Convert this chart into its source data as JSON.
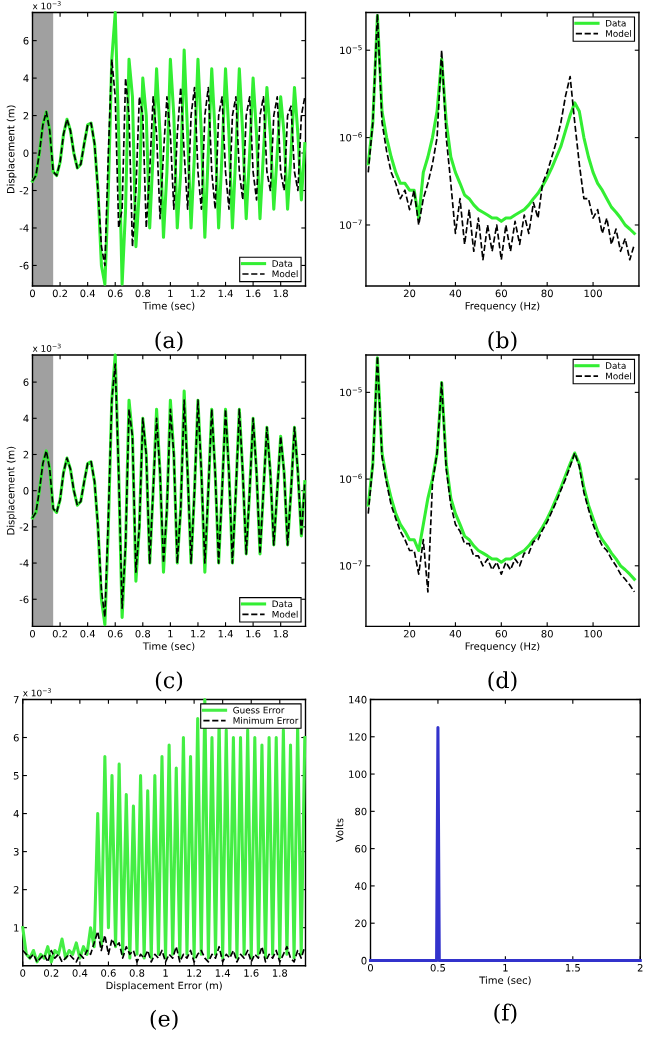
{
  "chart_data": [
    {
      "type": "line",
      "xlabel": "Time (sec)",
      "ylabel": "Displacement (m)",
      "annotations": [
        "(a)",
        "x 10$^{−3}$"
      ],
      "legend": "bottom right",
      "grid": false,
      "x": [
        0,
        0.025,
        0.05,
        0.075,
        0.1,
        0.125,
        0.15,
        0.175,
        0.2,
        0.225,
        0.25,
        0.275,
        0.3,
        0.325,
        0.35,
        0.375,
        0.4,
        0.425,
        0.45,
        0.475,
        0.5,
        0.525,
        0.55,
        0.575,
        0.6,
        0.625,
        0.65,
        0.675,
        0.7,
        0.725,
        0.75,
        0.775,
        0.8,
        0.825,
        0.85,
        0.875,
        0.9,
        0.925,
        0.95,
        0.975,
        1,
        1.025,
        1.05,
        1.075,
        1.1,
        1.125,
        1.15,
        1.175,
        1.2,
        1.225,
        1.25,
        1.275,
        1.3,
        1.325,
        1.35,
        1.375,
        1.4,
        1.425,
        1.45,
        1.475,
        1.5,
        1.525,
        1.55,
        1.575,
        1.6,
        1.625,
        1.65,
        1.675,
        1.7,
        1.725,
        1.75,
        1.775,
        1.8,
        1.825,
        1.85,
        1.875,
        1.9,
        1.925,
        1.95,
        1.975
      ],
      "series": [
        {
          "name": "Data",
          "color": "#33ee33",
          "line_style": "solid",
          "values": [
            -1.5,
            -1.2,
            0,
            1.5,
            2.2,
            1.2,
            -1,
            -1.2,
            -0.5,
            1,
            1.8,
            1.2,
            0,
            -0.8,
            -0.6,
            0.5,
            1.5,
            1.6,
            0.5,
            -2,
            -6,
            -7,
            -2,
            5,
            7.5,
            1,
            -7,
            -3,
            5,
            3,
            -5,
            -2,
            4,
            2,
            -4,
            0,
            4.5,
            1,
            -4.5,
            -1,
            5,
            2,
            -4,
            -1,
            5.5,
            1,
            -4,
            0,
            5,
            1,
            -4.5,
            0,
            4.5,
            1,
            -4,
            0,
            4.5,
            1,
            -4,
            0,
            4.5,
            1,
            -3.5,
            0,
            4,
            1,
            -3.5,
            0,
            3.5,
            1,
            -3,
            0,
            3,
            1,
            -3,
            0,
            3.5,
            1,
            -2.5,
            0.5
          ]
        },
        {
          "name": "Model",
          "color": "#000000",
          "line_style": "dashed",
          "values": [
            -1.5,
            -1.2,
            0,
            1.5,
            2.2,
            1.2,
            -1,
            -1.2,
            -0.5,
            1,
            1.8,
            1.2,
            0,
            -0.8,
            -0.6,
            0.5,
            1.5,
            1.6,
            0.5,
            -2,
            -5,
            -6,
            0,
            5,
            3,
            -4,
            -3,
            4,
            2,
            -5,
            -2,
            3,
            2,
            -4,
            -1,
            3,
            1,
            -3.5,
            0,
            3,
            1,
            -3,
            1,
            3.5,
            0,
            -3,
            2,
            3.5,
            -1,
            -3,
            2,
            3.5,
            -1,
            -3,
            2,
            3,
            -1,
            -3,
            2,
            3,
            -1,
            -2.5,
            2,
            3,
            -1,
            -2.5,
            2,
            3,
            -1,
            -2,
            2,
            3,
            -1,
            -2,
            2,
            2.5,
            -1,
            -2,
            2,
            3
          ]
        }
      ],
      "bands": [
        {
          "axis": "x",
          "from": 0,
          "to": 0.15,
          "color": "#a0a0a0"
        }
      ],
      "xlim": [
        0,
        1.98
      ],
      "ylim": [
        -7.1,
        7.5
      ],
      "xticks": [
        0,
        0.2,
        0.4,
        0.6,
        0.8,
        1,
        1.2,
        1.4,
        1.6,
        1.8
      ],
      "yticks": [
        -6,
        -4,
        -2,
        0,
        2,
        4,
        6
      ]
    },
    {
      "type": "line",
      "xlabel": "Frequency (Hz)",
      "annotations": [
        "(b)"
      ],
      "legend": "top right",
      "grid": false,
      "log": "y",
      "x": [
        2,
        4,
        6,
        8,
        10,
        12,
        14,
        16,
        18,
        20,
        22,
        24,
        26,
        28,
        30,
        32,
        34,
        36,
        38,
        40,
        42,
        44,
        46,
        48,
        50,
        52,
        54,
        56,
        58,
        60,
        62,
        64,
        66,
        68,
        70,
        72,
        74,
        76,
        78,
        80,
        82,
        84,
        86,
        88,
        90,
        92,
        94,
        96,
        98,
        100,
        102,
        104,
        106,
        108,
        110,
        112,
        114,
        116,
        118
      ],
      "series": [
        {
          "name": "Data",
          "color": "#33ee33",
          "line_style": "solid",
          "values": [
            5e-07,
            1.5e-06,
            2.5e-05,
            2e-06,
            1e-06,
            6e-07,
            4e-07,
            3e-07,
            3e-07,
            2.5e-07,
            2.5e-07,
            1.2e-07,
            4e-07,
            6e-07,
            1e-06,
            2e-06,
            8e-06,
            1.5e-06,
            6e-07,
            4e-07,
            3e-07,
            2.2e-07,
            2e-07,
            1.7e-07,
            1.5e-07,
            1.4e-07,
            1.3e-07,
            1.2e-07,
            1.2e-07,
            1.1e-07,
            1.2e-07,
            1.2e-07,
            1.3e-07,
            1.4e-07,
            1.5e-07,
            1.7e-07,
            2e-07,
            2.3e-07,
            2.8e-07,
            3.5e-07,
            4.5e-07,
            6e-07,
            8e-07,
            1.2e-06,
            1.8e-06,
            2.5e-06,
            2e-06,
            1e-06,
            6e-07,
            4e-07,
            3e-07,
            2.5e-07,
            2e-07,
            1.6e-07,
            1.4e-07,
            1.2e-07,
            1e-07,
            9e-08,
            8e-08
          ]
        },
        {
          "name": "Model",
          "color": "#000000",
          "line_style": "dashed",
          "values": [
            4e-07,
            1.5e-06,
            2.6e-05,
            1.5e-06,
            7e-07,
            4e-07,
            3e-07,
            2e-07,
            2.5e-07,
            1.5e-07,
            2.5e-07,
            1e-07,
            2e-07,
            3e-07,
            5e-07,
            1e-06,
            1e-05,
            1e-06,
            3e-07,
            8e-08,
            2e-07,
            6e-08,
            1.5e-07,
            5e-08,
            1.2e-07,
            4e-08,
            1e-07,
            5e-08,
            1e-07,
            4e-08,
            1e-07,
            5e-08,
            1.1e-07,
            6e-08,
            1.3e-07,
            8e-08,
            1.8e-07,
            1.2e-07,
            3e-07,
            4e-07,
            6e-07,
            9e-07,
            1.5e-06,
            3e-06,
            5e-06,
            1.5e-06,
            5e-07,
            2e-07,
            2e-07,
            1.2e-07,
            1.5e-07,
            8e-08,
            1.2e-07,
            6e-08,
            9e-08,
            5e-08,
            7e-08,
            4e-08,
            6e-08
          ]
        }
      ],
      "xlim": [
        1,
        120
      ],
      "ylim": [
        2e-08,
        2.7e-05
      ],
      "xticks": [
        20,
        40,
        60,
        80,
        100
      ],
      "yticks": [
        {
          "value": 1e-07,
          "label": "10$^{−7}$"
        },
        {
          "value": 1e-06,
          "label": "10$^{−6}$"
        },
        {
          "value": 1e-05,
          "label": "10$^{−5}$"
        }
      ]
    },
    {
      "type": "line",
      "xlabel": "Time (sec)",
      "ylabel": "Displacement (m)",
      "annotations": [
        "(c)",
        "x 10$^{−3}$"
      ],
      "legend": "bottom right",
      "grid": false,
      "x": [
        0,
        0.025,
        0.05,
        0.075,
        0.1,
        0.125,
        0.15,
        0.175,
        0.2,
        0.225,
        0.25,
        0.275,
        0.3,
        0.325,
        0.35,
        0.375,
        0.4,
        0.425,
        0.45,
        0.475,
        0.5,
        0.525,
        0.55,
        0.575,
        0.6,
        0.625,
        0.65,
        0.675,
        0.7,
        0.725,
        0.75,
        0.775,
        0.8,
        0.825,
        0.85,
        0.875,
        0.9,
        0.925,
        0.95,
        0.975,
        1,
        1.025,
        1.05,
        1.075,
        1.1,
        1.125,
        1.15,
        1.175,
        1.2,
        1.225,
        1.25,
        1.275,
        1.3,
        1.325,
        1.35,
        1.375,
        1.4,
        1.425,
        1.45,
        1.475,
        1.5,
        1.525,
        1.55,
        1.575,
        1.6,
        1.625,
        1.65,
        1.675,
        1.7,
        1.725,
        1.75,
        1.775,
        1.8,
        1.825,
        1.85,
        1.875,
        1.9,
        1.925,
        1.95,
        1.975
      ],
      "series": [
        {
          "name": "Data",
          "color": "#33ee33",
          "line_style": "solid",
          "values": [
            -1.5,
            -1.2,
            0,
            1.5,
            2.2,
            1.2,
            -1,
            -1.2,
            -0.5,
            1,
            1.8,
            1.2,
            0,
            -0.8,
            -0.6,
            0.5,
            1.5,
            1.6,
            0.5,
            -2,
            -6,
            -7.4,
            -2,
            5,
            7.5,
            1,
            -7,
            -3,
            5,
            3,
            -5,
            -2,
            4,
            2,
            -4,
            0,
            4.5,
            1,
            -4.5,
            -1,
            5,
            2,
            -4,
            -1,
            5.5,
            1,
            -4,
            0,
            5,
            1,
            -4.5,
            0,
            4.5,
            1,
            -4,
            0,
            4.5,
            1,
            -4,
            0,
            4.5,
            1,
            -3.5,
            0,
            4,
            1,
            -3.5,
            0,
            3.5,
            1,
            -3,
            0,
            3,
            1,
            -3,
            0,
            3.5,
            1,
            -2.5,
            0.5
          ]
        },
        {
          "name": "Model",
          "color": "#000000",
          "line_style": "dashed",
          "values": [
            -1.5,
            -1.2,
            0,
            1.5,
            2.2,
            1.2,
            -1,
            -1.2,
            -0.5,
            1,
            1.8,
            1.2,
            0,
            -0.8,
            -0.6,
            0.5,
            1.5,
            1.6,
            0.5,
            -2,
            -5.5,
            -7,
            -1.5,
            5,
            7,
            1,
            -6.5,
            -3,
            4.5,
            3,
            -4.5,
            -2,
            4,
            2,
            -4,
            0,
            4,
            1,
            -4,
            -1,
            4.5,
            2,
            -4,
            -1,
            5,
            1,
            -4,
            0,
            5,
            1,
            -4,
            0,
            4.5,
            1,
            -4,
            0,
            4.5,
            1,
            -4,
            0,
            4.5,
            1,
            -3.5,
            0,
            4,
            1,
            -3.5,
            0,
            3.5,
            1,
            -3,
            0,
            3,
            1,
            -3,
            0,
            3.5,
            1,
            -2.5,
            0.5
          ]
        }
      ],
      "bands": [
        {
          "axis": "x",
          "from": 0,
          "to": 0.15,
          "color": "#a0a0a0"
        }
      ],
      "xlim": [
        0,
        1.98
      ],
      "ylim": [
        -7.5,
        7.5
      ],
      "xticks": [
        0,
        0.2,
        0.4,
        0.6,
        0.8,
        1,
        1.2,
        1.4,
        1.6,
        1.8
      ],
      "yticks": [
        -6,
        -4,
        -2,
        0,
        2,
        4,
        6
      ]
    },
    {
      "type": "line",
      "xlabel": "Frequency (Hz)",
      "annotations": [
        "(d)"
      ],
      "legend": "top right",
      "grid": false,
      "log": "y",
      "x": [
        2,
        4,
        6,
        8,
        10,
        12,
        14,
        16,
        18,
        20,
        22,
        24,
        26,
        28,
        30,
        32,
        34,
        36,
        38,
        40,
        42,
        44,
        46,
        48,
        50,
        52,
        54,
        56,
        58,
        60,
        62,
        64,
        66,
        68,
        70,
        72,
        74,
        76,
        78,
        80,
        82,
        84,
        86,
        88,
        90,
        92,
        94,
        96,
        98,
        100,
        102,
        104,
        106,
        108,
        110,
        112,
        114,
        116,
        118
      ],
      "series": [
        {
          "name": "Data",
          "color": "#33ee33",
          "line_style": "solid",
          "values": [
            5e-07,
            1.5e-06,
            2.5e-05,
            2e-06,
            1e-06,
            6e-07,
            4e-07,
            3e-07,
            2.5e-07,
            2e-07,
            2e-07,
            1.5e-07,
            3e-07,
            6e-07,
            1e-06,
            2e-06,
            1.3e-05,
            1.5e-06,
            6e-07,
            4e-07,
            3e-07,
            2.2e-07,
            2e-07,
            1.7e-07,
            1.5e-07,
            1.4e-07,
            1.3e-07,
            1.2e-07,
            1.2e-07,
            1.1e-07,
            1.2e-07,
            1.2e-07,
            1.3e-07,
            1.4e-07,
            1.5e-07,
            1.7e-07,
            2e-07,
            2.3e-07,
            2.8e-07,
            3.5e-07,
            4.5e-07,
            6e-07,
            8e-07,
            1.1e-06,
            1.5e-06,
            2e-06,
            1.5e-06,
            8e-07,
            5e-07,
            3.5e-07,
            2.5e-07,
            2e-07,
            1.7e-07,
            1.4e-07,
            1.2e-07,
            1e-07,
            9e-08,
            8e-08,
            7e-08
          ]
        },
        {
          "name": "Model",
          "color": "#000000",
          "line_style": "dashed",
          "values": [
            4e-07,
            1.5e-06,
            2.6e-05,
            1.8e-06,
            9e-07,
            5e-07,
            3.5e-07,
            2.5e-07,
            2e-07,
            1.5e-07,
            1.5e-07,
            8e-08,
            2e-07,
            5e-08,
            9e-07,
            2e-06,
            1.3e-05,
            1.3e-06,
            5e-07,
            3e-07,
            2.5e-07,
            1.8e-07,
            1.8e-07,
            1.3e-07,
            1.3e-07,
            1e-07,
            1.2e-07,
            9e-08,
            1.1e-07,
            8e-08,
            1.1e-07,
            9e-08,
            1.2e-07,
            1e-07,
            1.4e-07,
            1.4e-07,
            1.9e-07,
            2e-07,
            2.6e-07,
            3.2e-07,
            4.2e-07,
            5.5e-07,
            7.5e-07,
            1e-06,
            1.4e-06,
            2e-06,
            1.4e-06,
            7e-07,
            4.5e-07,
            3e-07,
            2.2e-07,
            1.7e-07,
            1.5e-07,
            1.2e-07,
            1e-07,
            8e-08,
            7e-08,
            6e-08,
            5e-08
          ]
        }
      ],
      "xlim": [
        1,
        120
      ],
      "ylim": [
        2e-08,
        2.7e-05
      ],
      "xticks": [
        20,
        40,
        60,
        80,
        100
      ],
      "yticks": [
        {
          "value": 1e-07,
          "label": "10$^{−7}$"
        },
        {
          "value": 1e-06,
          "label": "10$^{−6}$"
        },
        {
          "value": 1e-05,
          "label": "10$^{−5}$"
        }
      ]
    },
    {
      "type": "line",
      "xlabel": "Displacement Error (m)",
      "annotations": [
        "(e)",
        "x 10$^{−3}$"
      ],
      "legend": "top right",
      "grid": false,
      "x": [
        0,
        0.025,
        0.05,
        0.075,
        0.1,
        0.125,
        0.15,
        0.175,
        0.2,
        0.225,
        0.25,
        0.275,
        0.3,
        0.325,
        0.35,
        0.375,
        0.4,
        0.425,
        0.45,
        0.475,
        0.5,
        0.525,
        0.55,
        0.575,
        0.6,
        0.625,
        0.65,
        0.675,
        0.7,
        0.725,
        0.75,
        0.775,
        0.8,
        0.825,
        0.85,
        0.875,
        0.9,
        0.925,
        0.95,
        0.975,
        1,
        1.025,
        1.05,
        1.075,
        1.1,
        1.125,
        1.15,
        1.175,
        1.2,
        1.225,
        1.25,
        1.275,
        1.3,
        1.325,
        1.35,
        1.375,
        1.4,
        1.425,
        1.45,
        1.475,
        1.5,
        1.525,
        1.55,
        1.575,
        1.6,
        1.625,
        1.65,
        1.675,
        1.7,
        1.725,
        1.75,
        1.775,
        1.8,
        1.825,
        1.85,
        1.875,
        1.9,
        1.925,
        1.95,
        1.975
      ],
      "series": [
        {
          "name": "Guess Error",
          "color": "#44ee44",
          "line_style": "solid",
          "values": [
            1,
            0.3,
            0.2,
            0.4,
            0.1,
            0.3,
            0.2,
            0.5,
            0.1,
            0.4,
            0.3,
            0.7,
            0.2,
            0.4,
            0.3,
            0.6,
            0.2,
            0.5,
            0.3,
            1,
            0.5,
            4,
            0.5,
            5.5,
            1,
            5,
            0.5,
            5.3,
            0.3,
            4.5,
            0.2,
            4.2,
            0.3,
            5,
            0.2,
            4.6,
            0.2,
            5,
            0.3,
            5.5,
            0.2,
            5.8,
            0.3,
            5.2,
            0.2,
            6,
            0.3,
            5.5,
            0.2,
            6.5,
            0.3,
            7,
            0.2,
            6,
            0.3,
            6.5,
            0.2,
            6.2,
            0.3,
            6,
            0.2,
            6,
            0.3,
            6.2,
            0.2,
            6,
            0.3,
            5.8,
            0.2,
            6,
            0.3,
            6,
            0.2,
            6.2,
            0.3,
            5.8,
            0.2,
            6.3,
            0.3,
            6
          ]
        },
        {
          "name": "Minimum Error",
          "color": "#000000",
          "line_style": "dashed",
          "values": [
            0.4,
            0.3,
            0.2,
            0.3,
            0.1,
            0.2,
            0.3,
            0.1,
            0.4,
            0.2,
            0.3,
            0.1,
            0.2,
            0.3,
            0.2,
            0.1,
            0.3,
            0.2,
            0.4,
            0.3,
            0.6,
            0.9,
            0.4,
            0.8,
            0.3,
            0.7,
            0.5,
            0.6,
            0.2,
            0.5,
            0.3,
            0.4,
            0.1,
            0.3,
            0.2,
            0.4,
            0.1,
            0.3,
            0.2,
            0.4,
            0.1,
            0.3,
            0.2,
            0.5,
            0.1,
            0.3,
            0.2,
            0.4,
            0.1,
            0.3,
            0.4,
            0.2,
            0.1,
            0.3,
            0.2,
            0.5,
            0.1,
            0.3,
            0.2,
            0.4,
            0.1,
            0.3,
            0.2,
            0.4,
            0.1,
            0.3,
            0.2,
            0.5,
            0.1,
            0.3,
            0.2,
            0.4,
            0.1,
            0.3,
            0.5,
            0.2,
            0.1,
            0.4,
            0.2,
            0.5
          ]
        }
      ],
      "xlim": [
        0,
        1.98
      ],
      "ylim": [
        0,
        7
      ],
      "xticks": [
        0,
        0.2,
        0.4,
        0.6,
        0.8,
        1,
        1.2,
        1.4,
        1.6,
        1.8
      ],
      "yticks": [
        1,
        2,
        3,
        4,
        5,
        6,
        7
      ]
    },
    {
      "type": "line",
      "xlabel": "Time (sec)",
      "ylabel": "Volts",
      "annotations": [
        "(f)"
      ],
      "grid": false,
      "x": [
        0,
        0.49,
        0.5,
        0.51,
        2
      ],
      "series": [
        {
          "color": "#3333cc",
          "line_style": "solid",
          "values": [
            0,
            0,
            125,
            0,
            0
          ]
        }
      ],
      "xlim": [
        0,
        2
      ],
      "ylim": [
        0,
        140
      ],
      "xticks": [
        0,
        0.5,
        1,
        1.5,
        2
      ],
      "yticks": [
        0,
        20,
        40,
        60,
        80,
        100,
        120,
        140
      ]
    }
  ]
}
